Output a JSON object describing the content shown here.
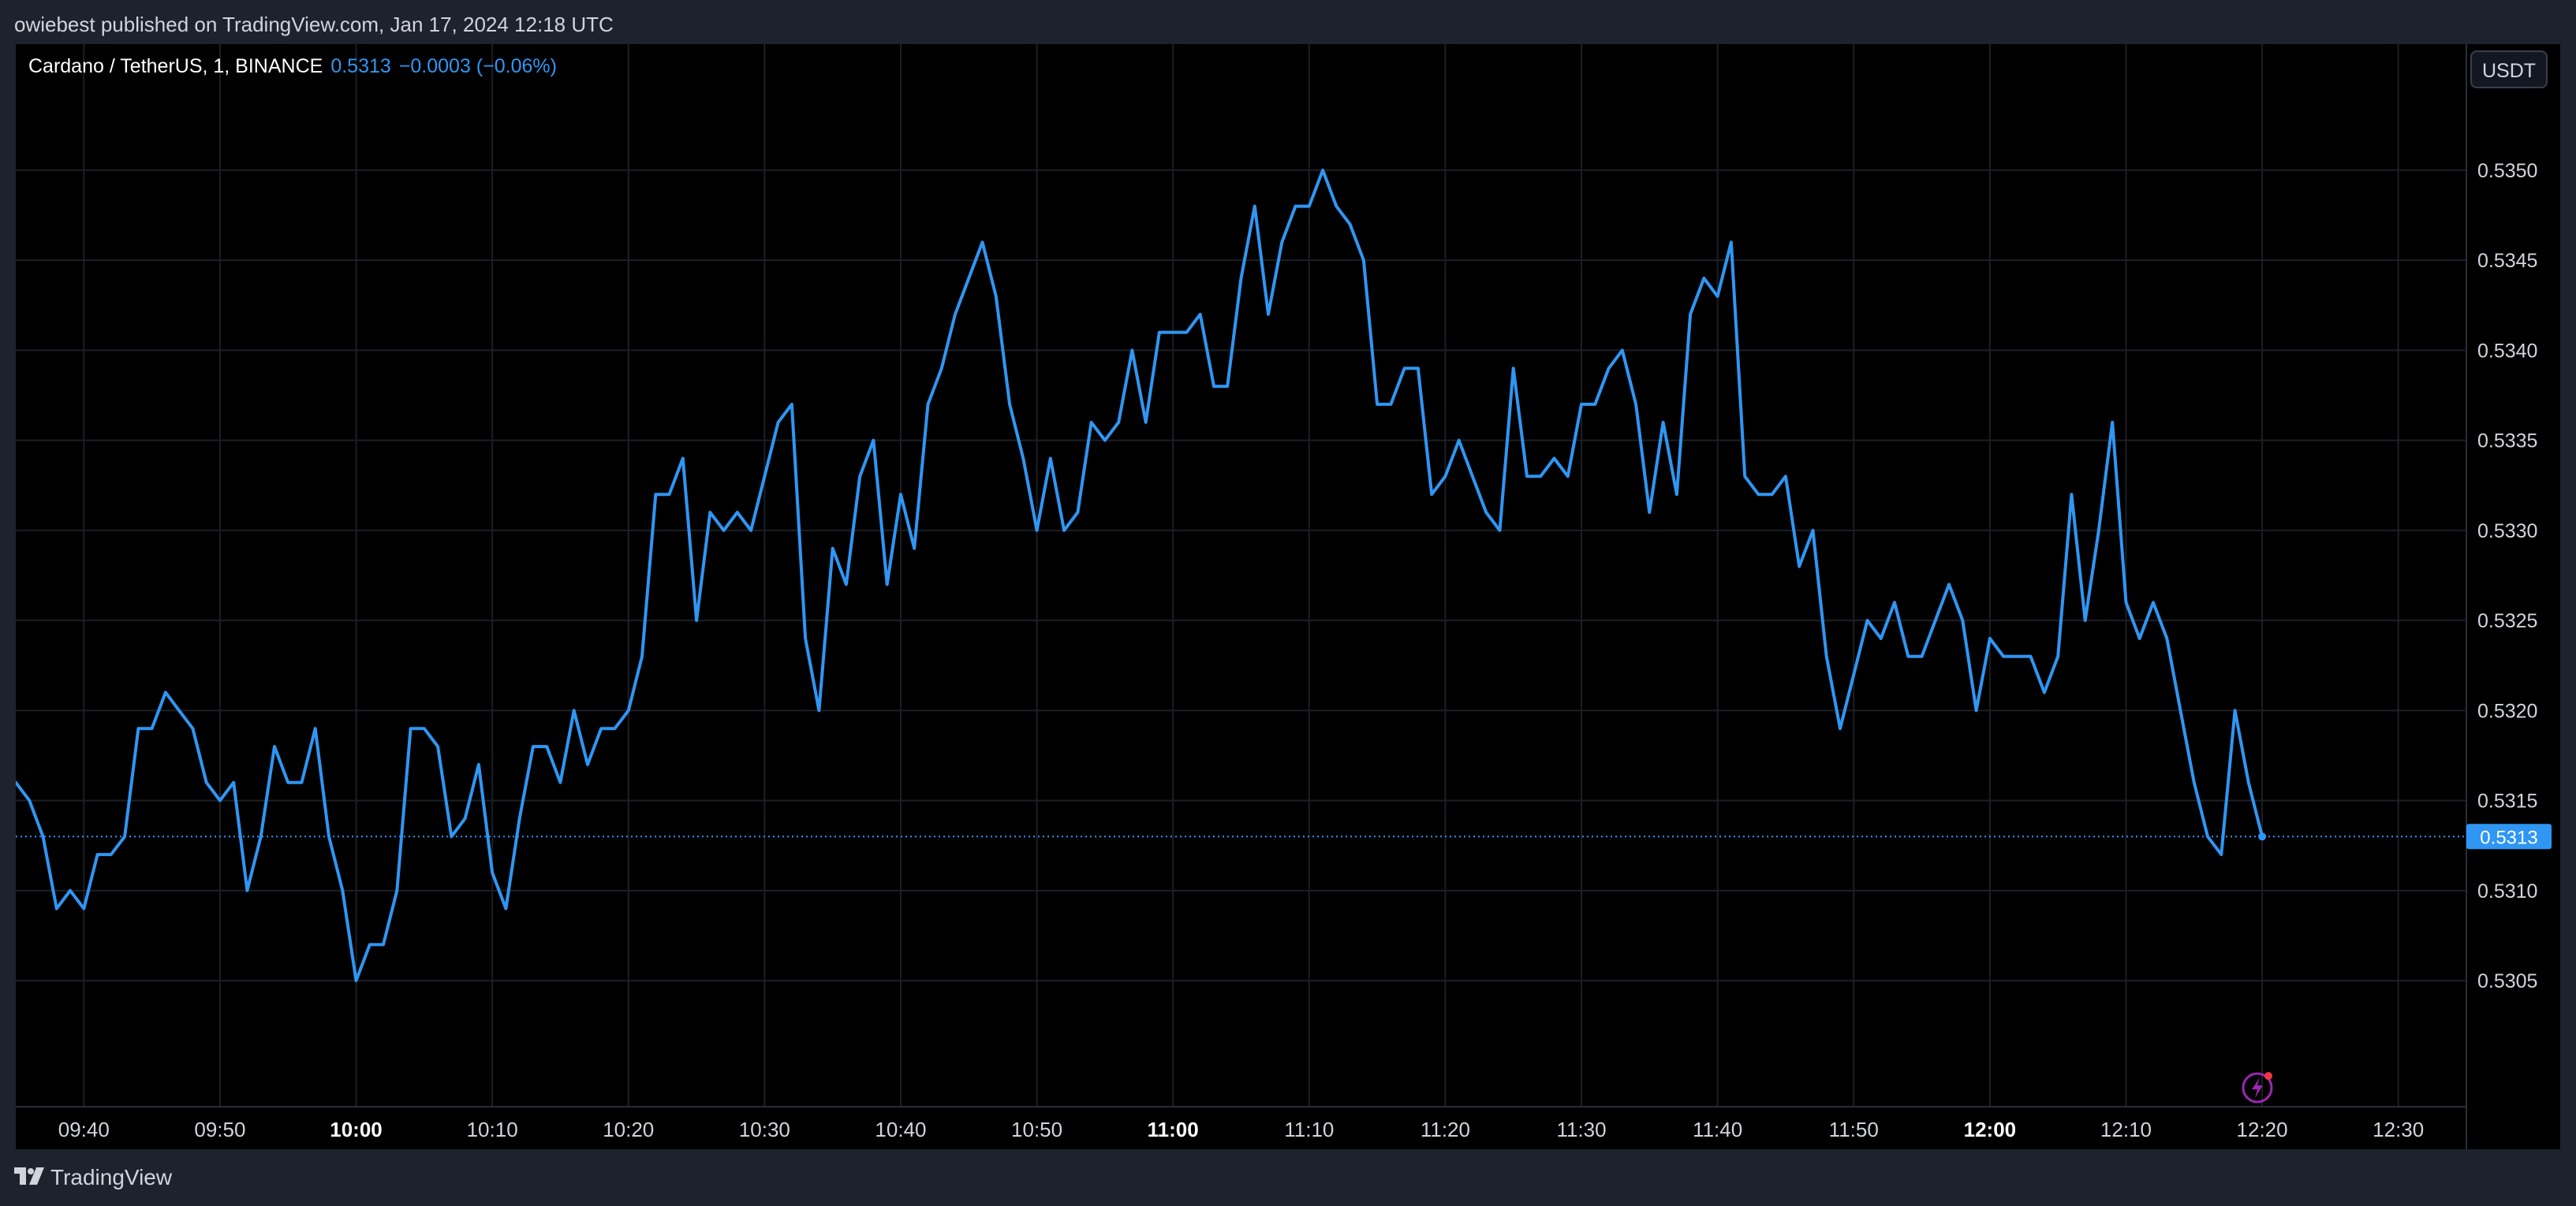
{
  "header": {
    "title": "owiebest published on TradingView.com, Jan 17, 2024 12:18 UTC"
  },
  "legend": {
    "symbol": "Cardano / TetherUS, 1, BINANCE",
    "price": "0.5313",
    "change": "−0.0003 (−0.06%)"
  },
  "price_scale": {
    "currency": "USDT",
    "last_price_label": "0.5313"
  },
  "footer": {
    "brand": "TradingView"
  },
  "colors": {
    "line": "#2f96f3",
    "background": "#000000",
    "page": "#1e222d",
    "grid": "#1c1f26",
    "text": "#d1d4dc",
    "label_bg": "#2f96f3"
  },
  "icons": {
    "footer_logo": "tradingview-logo-icon",
    "alert": "flash-icon"
  },
  "chart_data": {
    "type": "line",
    "symbol": "ADAUSDT",
    "interval_minutes": 1,
    "start_time": "09:35",
    "xlim": [
      "09:35",
      "12:35"
    ],
    "ylim": [
      0.5298,
      0.5357
    ],
    "grid": true,
    "x_ticks": [
      {
        "label": "09:40",
        "bold": false
      },
      {
        "label": "09:50",
        "bold": false
      },
      {
        "label": "10:00",
        "bold": true
      },
      {
        "label": "10:10",
        "bold": false
      },
      {
        "label": "10:20",
        "bold": false
      },
      {
        "label": "10:30",
        "bold": false
      },
      {
        "label": "10:40",
        "bold": false
      },
      {
        "label": "10:50",
        "bold": false
      },
      {
        "label": "11:00",
        "bold": true
      },
      {
        "label": "11:10",
        "bold": false
      },
      {
        "label": "11:20",
        "bold": false
      },
      {
        "label": "11:30",
        "bold": false
      },
      {
        "label": "11:40",
        "bold": false
      },
      {
        "label": "11:50",
        "bold": false
      },
      {
        "label": "12:00",
        "bold": true
      },
      {
        "label": "12:10",
        "bold": false
      },
      {
        "label": "12:20",
        "bold": false
      },
      {
        "label": "12:30",
        "bold": false
      }
    ],
    "y_ticks": [
      "0.5305",
      "0.5310",
      "0.5315",
      "0.5320",
      "0.5325",
      "0.5330",
      "0.5335",
      "0.5340",
      "0.5345",
      "0.5350"
    ],
    "last_value": 0.5313,
    "values": [
      0.5316,
      0.5315,
      0.5313,
      0.5309,
      0.531,
      0.5309,
      0.5312,
      0.5312,
      0.5313,
      0.5319,
      0.5319,
      0.5321,
      0.532,
      0.5319,
      0.5316,
      0.5315,
      0.5316,
      0.531,
      0.5313,
      0.5318,
      0.5316,
      0.5316,
      0.5319,
      0.5313,
      0.531,
      0.5305,
      0.5307,
      0.5307,
      0.531,
      0.5319,
      0.5319,
      0.5318,
      0.5313,
      0.5314,
      0.5317,
      0.5311,
      0.5309,
      0.5314,
      0.5318,
      0.5318,
      0.5316,
      0.532,
      0.5317,
      0.5319,
      0.5319,
      0.532,
      0.5323,
      0.5332,
      0.5332,
      0.5334,
      0.5325,
      0.5331,
      0.533,
      0.5331,
      0.533,
      0.5333,
      0.5336,
      0.5337,
      0.5324,
      0.532,
      0.5329,
      0.5327,
      0.5333,
      0.5335,
      0.5327,
      0.5332,
      0.5329,
      0.5337,
      0.5339,
      0.5342,
      0.5344,
      0.5346,
      0.5343,
      0.5337,
      0.5334,
      0.533,
      0.5334,
      0.533,
      0.5331,
      0.5336,
      0.5335,
      0.5336,
      0.534,
      0.5336,
      0.5341,
      0.5341,
      0.5341,
      0.5342,
      0.5338,
      0.5338,
      0.5344,
      0.5348,
      0.5342,
      0.5346,
      0.5348,
      0.5348,
      0.535,
      0.5348,
      0.5347,
      0.5345,
      0.5337,
      0.5337,
      0.5339,
      0.5339,
      0.5332,
      0.5333,
      0.5335,
      0.5333,
      0.5331,
      0.533,
      0.5339,
      0.5333,
      0.5333,
      0.5334,
      0.5333,
      0.5337,
      0.5337,
      0.5339,
      0.534,
      0.5337,
      0.5331,
      0.5336,
      0.5332,
      0.5342,
      0.5344,
      0.5343,
      0.5346,
      0.5333,
      0.5332,
      0.5332,
      0.5333,
      0.5328,
      0.533,
      0.5323,
      0.5319,
      0.5322,
      0.5325,
      0.5324,
      0.5326,
      0.5323,
      0.5323,
      0.5325,
      0.5327,
      0.5325,
      0.532,
      0.5324,
      0.5323,
      0.5323,
      0.5323,
      0.5321,
      0.5323,
      0.5332,
      0.5325,
      0.533,
      0.5336,
      0.5326,
      0.5324,
      0.5326,
      0.5324,
      0.532,
      0.5316,
      0.5313,
      0.5312,
      0.532,
      0.5316,
      0.5313
    ]
  }
}
